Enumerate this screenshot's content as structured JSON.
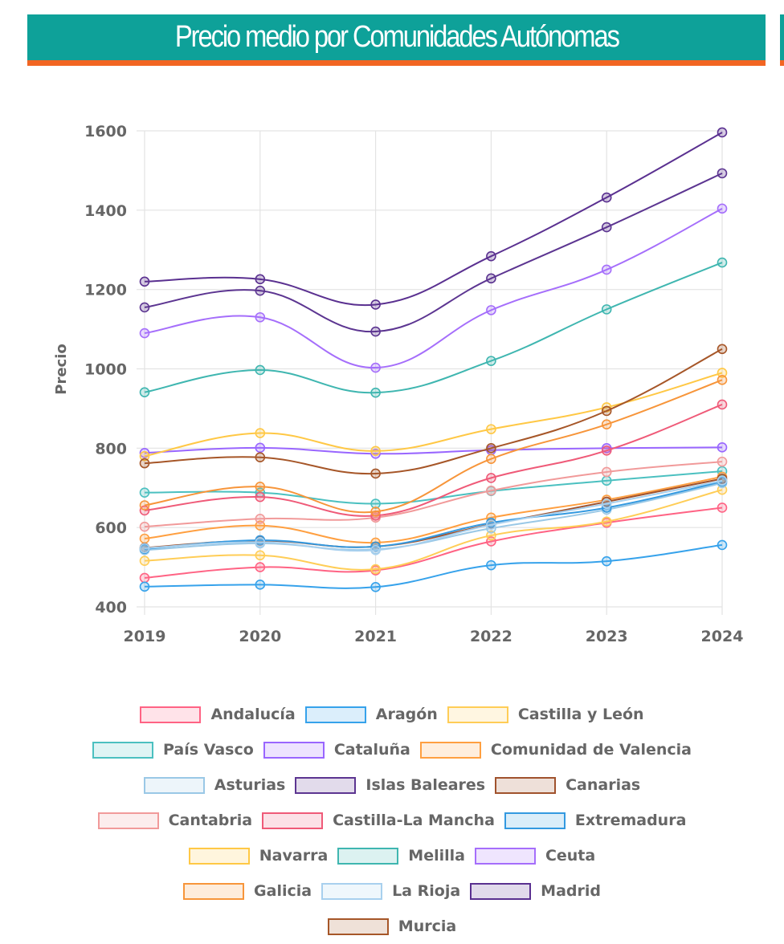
{
  "header": {
    "title": "Precio medio por Comunidades Autónomas"
  },
  "chart_data": {
    "type": "line",
    "title": "Precio medio por Comunidades Autónomas",
    "xlabel": "",
    "ylabel": "Precio",
    "categories": [
      "2019",
      "2020",
      "2021",
      "2022",
      "2023",
      "2024"
    ],
    "ylim": [
      400,
      1600
    ],
    "yticks": [
      400,
      600,
      800,
      1000,
      1200,
      1400,
      1600
    ],
    "grid": true,
    "legend_position": "bottom",
    "series": [
      {
        "name": "Andalucía",
        "color": "#ff6384",
        "values": [
          473,
          500,
          492,
          565,
          612,
          650
        ]
      },
      {
        "name": "Aragón",
        "color": "#36a2eb",
        "values": [
          451,
          456,
          450,
          505,
          515,
          556
        ]
      },
      {
        "name": "Castilla y León",
        "color": "#ffcd56",
        "values": [
          516,
          530,
          495,
          580,
          615,
          695
        ]
      },
      {
        "name": "País Vasco",
        "color": "#4bc0c0",
        "values": [
          688,
          688,
          660,
          692,
          718,
          742
        ]
      },
      {
        "name": "Cataluña",
        "color": "#9966ff",
        "values": [
          788,
          801,
          786,
          795,
          800,
          802
        ]
      },
      {
        "name": "Comunidad de Valencia",
        "color": "#ff9f40",
        "values": [
          572,
          605,
          562,
          625,
          670,
          728
        ]
      },
      {
        "name": "Asturias",
        "color": "#9ac8e6",
        "values": [
          543,
          560,
          545,
          598,
          645,
          712
        ]
      },
      {
        "name": "Islas Baleares",
        "color": "#5c3591",
        "values": [
          1155,
          1197,
          1094,
          1228,
          1357,
          1493
        ]
      },
      {
        "name": "Canarias",
        "color": "#a0522d",
        "values": [
          549,
          567,
          552,
          608,
          665,
          723
        ]
      },
      {
        "name": "Cantabria",
        "color": "#f19a9a",
        "values": [
          602,
          622,
          625,
          693,
          740,
          766
        ]
      },
      {
        "name": "Castilla-La Mancha",
        "color": "#ef5a78",
        "values": [
          643,
          677,
          630,
          725,
          794,
          910
        ]
      },
      {
        "name": "Extremadura",
        "color": "#3399e0",
        "values": [
          546,
          568,
          552,
          612,
          650,
          716
        ]
      },
      {
        "name": "Navarra",
        "color": "#ffc845",
        "values": [
          780,
          838,
          793,
          848,
          903,
          990
        ]
      },
      {
        "name": "Melilla",
        "color": "#3fb6b0",
        "values": [
          941,
          997,
          940,
          1020,
          1150,
          1268
        ]
      },
      {
        "name": "Ceuta",
        "color": "#a56efb",
        "values": [
          1090,
          1130,
          1003,
          1148,
          1250,
          1404
        ]
      },
      {
        "name": "Galicia",
        "color": "#f7953a",
        "values": [
          656,
          703,
          640,
          773,
          860,
          972
        ]
      },
      {
        "name": "La Rioja",
        "color": "#a8d0ee",
        "values": [
          548,
          563,
          543,
          607,
          660,
          718
        ]
      },
      {
        "name": "Madrid",
        "color": "#5a3090",
        "values": [
          1220,
          1226,
          1162,
          1284,
          1432,
          1596
        ]
      },
      {
        "name": "Murcia",
        "color": "#a65628",
        "values": [
          762,
          777,
          736,
          800,
          894,
          1050
        ]
      }
    ]
  }
}
